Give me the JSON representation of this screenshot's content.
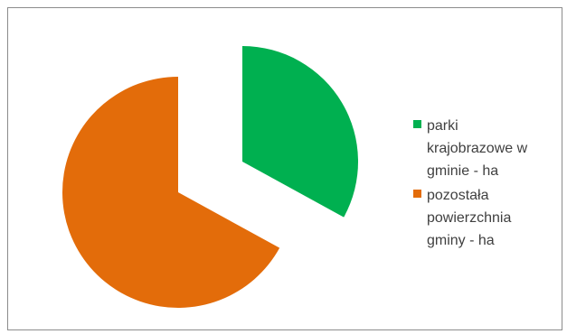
{
  "chart_data": {
    "type": "pie",
    "series": [
      {
        "name": "parki krajobrazowe w gminie  - ha",
        "value": 33,
        "color": "#00b050"
      },
      {
        "name": "pozostała powierzchnia gminy  - ha",
        "value": 67,
        "color": "#e36c0a"
      }
    ],
    "legend_position": "right",
    "exploded": true
  },
  "legend": {
    "items": [
      {
        "label": "parki\nkrajobrazowe w\ngminie  - ha",
        "color": "#00b050"
      },
      {
        "label": "pozostała\npowierzchnia\ngminy  - ha",
        "color": "#e36c0a"
      }
    ]
  }
}
